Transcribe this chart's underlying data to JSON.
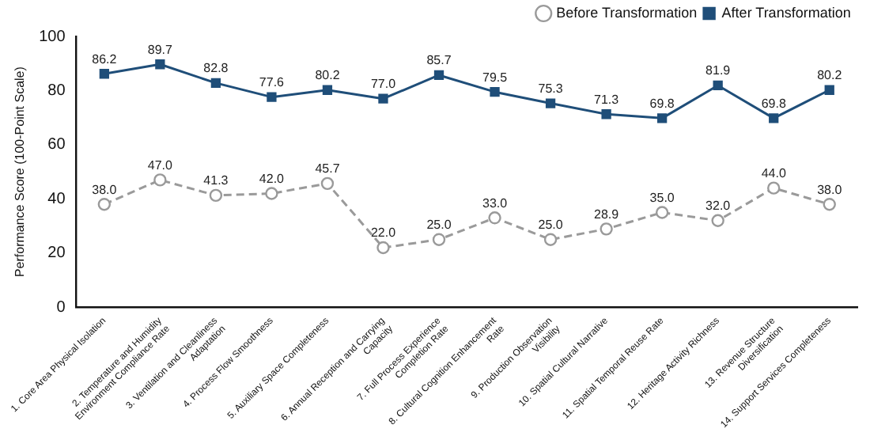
{
  "chart_data": {
    "type": "line",
    "ylabel": "Performance Score (100-Point Scale)",
    "categories": [
      "1. Core Area Physical Isolation",
      "2. Temperature and Humidity Environment Compliance Rate",
      "3. Ventilation and Cleanliness Adaptation",
      "4. Process Flow Smoothness",
      "5. Auxiliary Space Completeness",
      "6. Annual Reception and Carrying Capacity",
      "7. Full Process Experience Completion Rate",
      "8. Cultural Cognition Enhancement Rate",
      "9. Production Observation Visibility",
      "10. Spatial Cultural Narrative",
      "11. Spatial Temporal Reuse Rate",
      "12. Heritage Activity Richness",
      "13. Revenue Structure Diversification",
      "14. Support Services Completeness"
    ],
    "series": [
      {
        "name": "Before Transformation",
        "color": "#9a9a9a",
        "marker": "circle",
        "line_style": "dashed",
        "values": [
          38.0,
          47.0,
          41.3,
          42.0,
          45.7,
          22.0,
          25.0,
          33.0,
          25.0,
          28.9,
          35.0,
          32.0,
          44.0,
          38.0
        ],
        "value_labels": [
          "38.0",
          "47.0",
          "41.3",
          "42.0",
          "45.7",
          "22.0",
          "25.0",
          "33.0",
          "25.0",
          "28.9",
          "35.0",
          "32.0",
          "44.0",
          "38.0"
        ]
      },
      {
        "name": "After Transformation",
        "color": "#1f4e79",
        "marker": "square",
        "line_style": "solid",
        "values": [
          86.2,
          89.7,
          82.8,
          77.6,
          80.2,
          77.0,
          85.7,
          79.5,
          75.3,
          71.3,
          69.8,
          81.9,
          69.8,
          80.2
        ],
        "value_labels": [
          "86.2",
          "89.7",
          "82.8",
          "77.6",
          "80.2",
          "77.0",
          "85.7",
          "79.5",
          "75.3",
          "71.3",
          "69.8",
          "81.9",
          "69.8",
          "80.2"
        ]
      }
    ],
    "ylim": [
      0,
      100
    ],
    "yticks": [
      0,
      20,
      40,
      60,
      80,
      100
    ],
    "grid": false,
    "legend": "top right"
  }
}
